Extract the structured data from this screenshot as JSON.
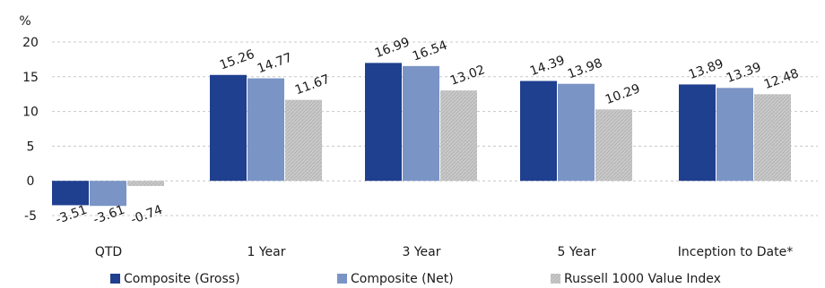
{
  "chart_data": {
    "type": "bar",
    "y_unit_label": "%",
    "ylim": [
      -5,
      20
    ],
    "yticks": [
      -5,
      0,
      5,
      10,
      15,
      20
    ],
    "grid": true,
    "legend_position": "bottom",
    "categories": [
      "QTD",
      "1 Year",
      "3 Year",
      "5 Year",
      "Inception to Date*"
    ],
    "series": [
      {
        "name": "Composite (Gross)",
        "color": "#1f3f8f",
        "pattern": "solid",
        "values": [
          -3.51,
          15.26,
          16.99,
          14.39,
          13.89
        ],
        "labels": [
          "-3.51",
          "15.26",
          "16.99",
          "14.39",
          "13.89"
        ]
      },
      {
        "name": "Composite (Net)",
        "color": "#7b94c6",
        "pattern": "solid",
        "values": [
          -3.61,
          14.77,
          16.54,
          13.98,
          13.39
        ],
        "labels": [
          "-3.61",
          "14.77",
          "16.54",
          "13.98",
          "13.39"
        ]
      },
      {
        "name": "Russell 1000 Value Index",
        "color": "#c4c4c4",
        "pattern": "hatched",
        "values": [
          -0.74,
          11.67,
          13.02,
          10.29,
          12.48
        ],
        "labels": [
          "-0.74",
          "11.67",
          "13.02",
          "10.29",
          "12.48"
        ]
      }
    ]
  }
}
